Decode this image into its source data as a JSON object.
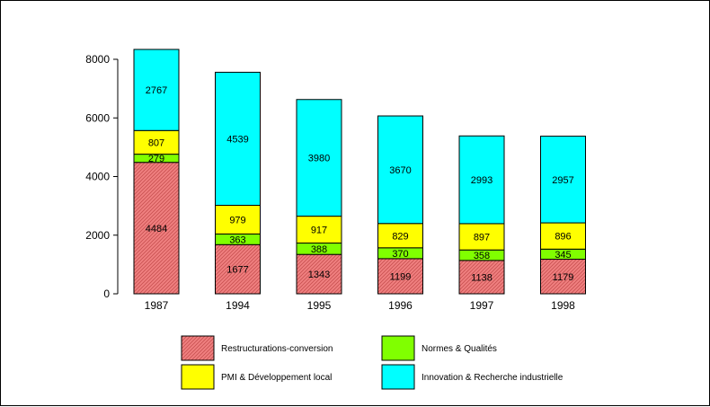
{
  "chart_data": {
    "type": "bar",
    "stacked": true,
    "categories": [
      "1987",
      "1994",
      "1995",
      "1996",
      "1997",
      "1998"
    ],
    "series": [
      {
        "name": "Restructurations-conversion",
        "color": "#f08080",
        "pattern": "hatched",
        "values": [
          4484,
          1677,
          1343,
          1199,
          1138,
          1179
        ]
      },
      {
        "name": "Normes & Qualités",
        "color": "#80ff00",
        "values": [
          279,
          363,
          388,
          370,
          358,
          345
        ]
      },
      {
        "name": "PMI & Développement local",
        "color": "#ffff00",
        "values": [
          807,
          979,
          917,
          829,
          897,
          896
        ]
      },
      {
        "name": "Innovation & Recherche industrielle",
        "color": "#00ffff",
        "values": [
          2767,
          4539,
          3980,
          3670,
          2993,
          2957
        ]
      }
    ],
    "y_ticks": [
      "0",
      "2000",
      "4000",
      "6000",
      "8000"
    ],
    "ylim": [
      0,
      8000
    ],
    "grid": false,
    "legend_position": "bottom",
    "title": "",
    "xlabel": "",
    "ylabel": ""
  }
}
